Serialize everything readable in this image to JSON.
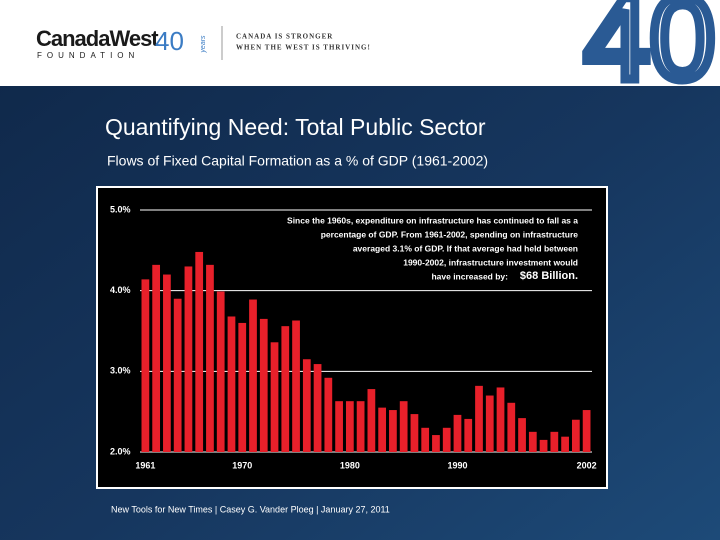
{
  "header": {
    "logo_name": "CanadaWest",
    "logo_sub": "FOUNDATION",
    "logo_years": "40",
    "logo_years_word": "years",
    "tagline": [
      "CANADA IS STRONGER",
      "WHEN THE WEST IS THRIVING!"
    ],
    "big_mark": "40"
  },
  "slide": {
    "title": "Quantifying Need:  Total Public Sector",
    "subtitle": "Flows of Fixed Capital Formation as a % of GDP (1961-2002)",
    "footer": "New Tools for New Times  |  Casey G. Vander Ploeg  |  January 27, 2011"
  },
  "chart_data": {
    "type": "bar",
    "color": "#e8202a",
    "grid": true,
    "annotation": [
      "Since the 1960s, expenditure on infrastructure has continued to fall as a",
      "percentage of GDP.  From 1961-2002, spending on infrastructure",
      "averaged 3.1% of GDP.  If that average had held between",
      "1990-2002, infrastructure investment would",
      "have increased by:"
    ],
    "annotation_emphasis": "$68 Billion.",
    "categories": [
      "1961",
      null,
      null,
      null,
      null,
      null,
      null,
      null,
      null,
      "1970",
      null,
      null,
      null,
      null,
      null,
      null,
      null,
      null,
      null,
      "1980",
      null,
      null,
      null,
      null,
      null,
      null,
      null,
      null,
      null,
      "1990",
      null,
      null,
      null,
      null,
      null,
      null,
      null,
      null,
      null,
      null,
      null,
      "2002"
    ],
    "values": [
      4.14,
      4.32,
      4.2,
      3.9,
      4.3,
      4.48,
      4.32,
      3.99,
      3.68,
      3.6,
      3.89,
      3.65,
      3.36,
      3.56,
      3.63,
      3.15,
      3.09,
      2.92,
      2.63,
      2.63,
      2.63,
      2.78,
      2.55,
      2.52,
      2.63,
      2.47,
      2.3,
      2.21,
      2.3,
      2.46,
      2.41,
      2.82,
      2.7,
      2.8,
      2.61,
      2.42,
      2.25,
      2.15,
      2.25,
      2.19,
      2.4,
      2.52
    ],
    "ylim": [
      2,
      5
    ],
    "yticks": [
      {
        "value": 2,
        "label": "2.0%"
      },
      {
        "value": 3,
        "label": "3.0%"
      },
      {
        "value": 4,
        "label": "4.0%"
      },
      {
        "value": 5,
        "label": "5.0%"
      }
    ]
  }
}
